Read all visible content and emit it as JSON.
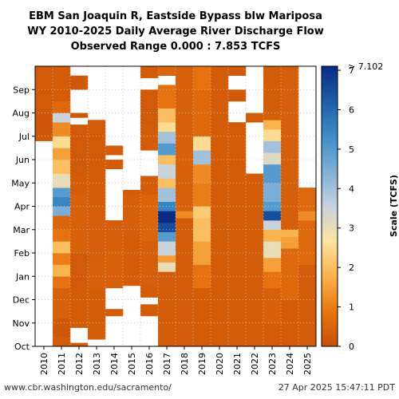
{
  "chart_data": {
    "type": "heatmap",
    "title_lines": [
      "EBM San Joaquin R, Eastside Bypass blw Mariposa",
      "WY 2010-2025 Daily Average River Discharge Flow",
      "Observed Range 0.000 : 7.853 TCFS"
    ],
    "x_categories": [
      "2010",
      "2011",
      "2012",
      "2013",
      "2014",
      "2015",
      "2016",
      "2017",
      "2018",
      "2019",
      "2020",
      "2021",
      "2022",
      "2023",
      "2024",
      "2025"
    ],
    "y_months": [
      "Oct",
      "Nov",
      "Dec",
      "Jan",
      "Feb",
      "Mar",
      "Apr",
      "May",
      "Jun",
      "Jul",
      "Aug",
      "Sep"
    ],
    "colorbar": {
      "label": "Scale (TCFS)",
      "min": 0,
      "max": 7.102,
      "ticks": [
        0,
        1,
        2,
        3,
        4,
        5,
        6,
        7
      ],
      "top_label": "> 7.102",
      "colors": [
        "#c84f06",
        "#e8760f",
        "#fbb24a",
        "#fde4a0",
        "#c8d2df",
        "#7fb0d8",
        "#3d8fc7",
        "#1c5ea8",
        "#0a2a85"
      ]
    },
    "years": [
      {
        "year": "2010",
        "segments": [
          [
            8.8,
            10.2,
            0.2
          ],
          [
            10.2,
            12.0,
            0.25
          ]
        ]
      },
      {
        "year": "2011",
        "segments": [
          [
            0,
            0.4,
            0.3
          ],
          [
            0.4,
            1.2,
            0.2
          ],
          [
            1.2,
            2.5,
            0.4
          ],
          [
            2.5,
            3.0,
            0.8
          ],
          [
            3.0,
            3.5,
            1.8
          ],
          [
            3.5,
            4.0,
            1.0
          ],
          [
            4.0,
            4.5,
            2.0
          ],
          [
            4.5,
            5.0,
            0.8
          ],
          [
            5.0,
            5.6,
            0.5
          ],
          [
            5.6,
            6.0,
            4.5
          ],
          [
            6.0,
            6.4,
            5.5
          ],
          [
            6.4,
            6.8,
            5.0
          ],
          [
            6.8,
            7.4,
            3.0
          ],
          [
            7.4,
            8.0,
            2.0
          ],
          [
            8.0,
            8.5,
            1.5
          ],
          [
            8.5,
            9.0,
            2.5
          ],
          [
            9.0,
            9.6,
            1.2
          ],
          [
            9.6,
            10.0,
            3.5
          ],
          [
            10.0,
            10.5,
            0.6
          ],
          [
            10.5,
            12.0,
            0.3
          ]
        ]
      },
      {
        "year": "2012",
        "segments": [
          [
            0,
            0.15,
            0.3
          ],
          [
            0.8,
            2.5,
            0.3
          ],
          [
            2.5,
            4.0,
            0.25
          ],
          [
            4.0,
            6.5,
            0.4
          ],
          [
            6.5,
            7.3,
            0.3
          ],
          [
            7.3,
            9.5,
            0.25
          ],
          [
            9.8,
            10.0,
            0.2
          ],
          [
            11.0,
            11.6,
            0.2
          ]
        ]
      },
      {
        "year": "2013",
        "segments": [
          [
            0.3,
            2.5,
            0.3
          ],
          [
            2.5,
            3.6,
            0.4
          ],
          [
            3.6,
            6.0,
            0.35
          ],
          [
            6.0,
            7.0,
            0.3
          ],
          [
            7.0,
            8.0,
            0.3
          ],
          [
            8.0,
            8.5,
            0.25
          ],
          [
            8.5,
            9.1,
            0.25
          ],
          [
            9.1,
            9.7,
            0.25
          ]
        ]
      },
      {
        "year": "2014",
        "segments": [
          [
            1.3,
            1.6,
            0.3
          ],
          [
            2.5,
            4.1,
            0.4
          ],
          [
            4.1,
            5.4,
            0.35
          ],
          [
            7.6,
            8.0,
            0.3
          ],
          [
            8.2,
            8.6,
            0.3
          ]
        ]
      },
      {
        "year": "2015",
        "segments": [
          [
            2.6,
            2.7,
            0.3
          ],
          [
            2.7,
            5.0,
            0.3
          ],
          [
            5.0,
            6.5,
            0.35
          ],
          [
            6.5,
            6.7,
            0.3
          ]
        ]
      },
      {
        "year": "2016",
        "segments": [
          [
            1.3,
            1.8,
            0.3
          ],
          [
            2.1,
            2.6,
            0.3
          ],
          [
            2.6,
            4.5,
            0.35
          ],
          [
            4.5,
            6.5,
            0.5
          ],
          [
            6.5,
            7.3,
            0.3
          ],
          [
            8.4,
            9.5,
            0.3
          ],
          [
            9.5,
            11.0,
            0.25
          ],
          [
            11.5,
            12.0,
            0.3
          ]
        ]
      },
      {
        "year": "2017",
        "segments": [
          [
            0,
            3.2,
            0.3
          ],
          [
            3.2,
            3.6,
            3.0
          ],
          [
            3.6,
            3.9,
            1.5
          ],
          [
            3.9,
            4.5,
            3.5
          ],
          [
            4.5,
            4.9,
            5.0
          ],
          [
            4.9,
            5.3,
            6.5
          ],
          [
            5.3,
            5.8,
            8.0
          ],
          [
            5.8,
            6.2,
            5.5
          ],
          [
            6.2,
            6.8,
            4.0
          ],
          [
            6.8,
            7.2,
            2.0
          ],
          [
            7.2,
            7.8,
            3.5
          ],
          [
            7.8,
            8.2,
            2.0
          ],
          [
            8.2,
            8.7,
            5.0
          ],
          [
            8.7,
            9.2,
            4.0
          ],
          [
            9.2,
            9.6,
            2.5
          ],
          [
            9.6,
            10.2,
            2.0
          ],
          [
            10.2,
            11.2,
            0.8
          ],
          [
            11.6,
            12.0,
            0.5
          ]
        ]
      },
      {
        "year": "2018",
        "segments": [
          [
            0,
            5.5,
            0.3
          ],
          [
            5.5,
            5.8,
            1.2
          ],
          [
            5.8,
            12.0,
            0.4
          ]
        ]
      },
      {
        "year": "2019",
        "segments": [
          [
            0,
            2.5,
            0.3
          ],
          [
            2.5,
            3.5,
            0.8
          ],
          [
            3.5,
            4.5,
            1.5
          ],
          [
            4.5,
            5.5,
            2.0
          ],
          [
            5.5,
            6.0,
            2.2
          ],
          [
            6.0,
            7.0,
            1.0
          ],
          [
            7.0,
            7.8,
            1.2
          ],
          [
            7.8,
            8.4,
            4.0
          ],
          [
            8.4,
            9.0,
            2.5
          ],
          [
            9.0,
            11.0,
            0.6
          ],
          [
            11.0,
            12.0,
            0.8
          ]
        ]
      },
      {
        "year": "2020",
        "segments": [
          [
            0,
            12.0,
            0.3
          ]
        ]
      },
      {
        "year": "2021",
        "segments": [
          [
            0,
            9.0,
            0.3
          ],
          [
            9.0,
            9.6,
            0.25
          ],
          [
            10.5,
            11.0,
            0.25
          ],
          [
            11.6,
            12.0,
            0.25
          ]
        ]
      },
      {
        "year": "2022",
        "segments": [
          [
            0,
            7.0,
            0.3
          ],
          [
            7.0,
            7.4,
            0.3
          ],
          [
            9.6,
            10.0,
            0.3
          ]
        ]
      },
      {
        "year": "2023",
        "segments": [
          [
            0,
            1.0,
            0.3
          ],
          [
            1.0,
            2.5,
            0.4
          ],
          [
            2.5,
            3.2,
            0.8
          ],
          [
            3.2,
            3.8,
            1.5
          ],
          [
            3.8,
            4.5,
            3.0
          ],
          [
            4.5,
            5.0,
            1.8
          ],
          [
            5.0,
            5.4,
            3.5
          ],
          [
            5.4,
            5.8,
            6.5
          ],
          [
            5.8,
            6.2,
            5.0
          ],
          [
            6.2,
            7.0,
            4.5
          ],
          [
            7.0,
            7.8,
            5.0
          ],
          [
            7.8,
            8.3,
            3.2
          ],
          [
            8.3,
            8.8,
            4.0
          ],
          [
            8.8,
            9.3,
            2.5
          ],
          [
            9.3,
            9.7,
            1.8
          ],
          [
            9.7,
            12.0,
            0.3
          ]
        ]
      },
      {
        "year": "2024",
        "segments": [
          [
            0,
            2.0,
            0.3
          ],
          [
            2.0,
            4.2,
            0.6
          ],
          [
            4.2,
            4.7,
            1.5
          ],
          [
            4.7,
            5.0,
            1.8
          ],
          [
            5.0,
            12.0,
            0.35
          ]
        ]
      },
      {
        "year": "2025",
        "segments": [
          [
            0,
            3.5,
            0.3
          ],
          [
            3.5,
            5.4,
            0.6
          ],
          [
            5.4,
            5.8,
            1.2
          ],
          [
            5.8,
            6.8,
            0.6
          ]
        ]
      }
    ]
  },
  "footer": {
    "left": "www.cbr.washington.edu/sacramento/",
    "right": "27 Apr 2025 15:47:11 PDT"
  }
}
